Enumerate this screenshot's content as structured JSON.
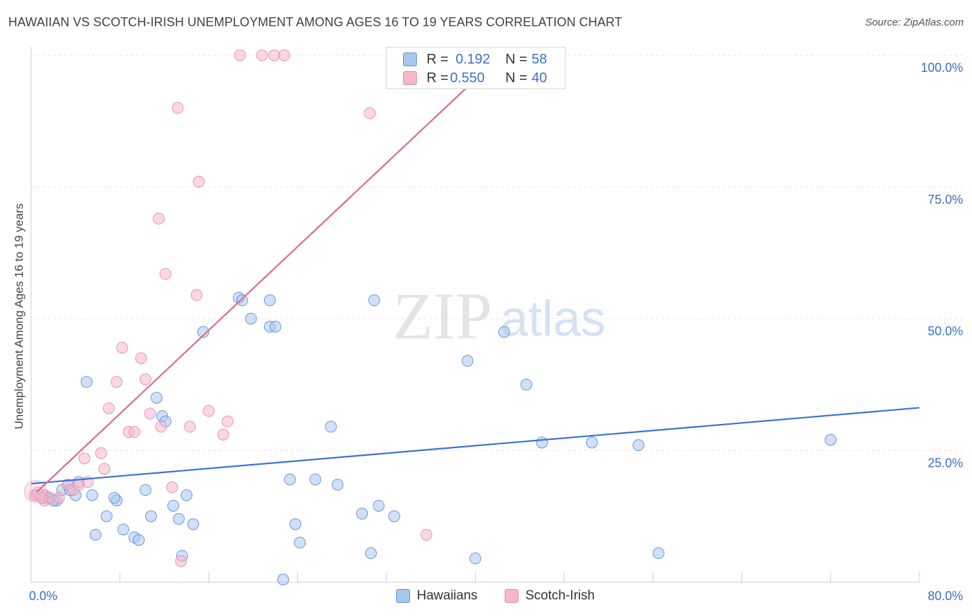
{
  "title": "HAWAIIAN VS SCOTCH-IRISH UNEMPLOYMENT AMONG AGES 16 TO 19 YEARS CORRELATION CHART",
  "source": "Source: ZipAtlas.com",
  "watermark": {
    "zip": "ZIP",
    "atlas": "atlas"
  },
  "legend": {
    "r_label": "R =",
    "n_label": "N =",
    "hawaiians": {
      "r": "0.192",
      "n": "58"
    },
    "scotch_irish": {
      "r": "0.550",
      "n": "40"
    }
  },
  "bottom_legend": {
    "hawaiians": "Hawaiians",
    "scotch_irish": "Scotch-Irish"
  },
  "colors": {
    "hawaiians_fill": "#a9c6ef",
    "hawaiians_stroke": "#5b8fd8",
    "hawaiians_line": "#3a72d4",
    "scotch_fill": "#f5b8cb",
    "scotch_stroke": "#e58aa8",
    "scotch_line": "#e0678e",
    "tick_label": "#3b6fc8",
    "grid": "#e6e6e6"
  },
  "chart_data": {
    "type": "scatter",
    "title": "HAWAIIAN VS SCOTCH-IRISH UNEMPLOYMENT AMONG AGES 16 TO 19 YEARS CORRELATION CHART",
    "xlabel": "",
    "ylabel": "Unemployment Among Ages 16 to 19 years",
    "xlim": [
      0,
      80
    ],
    "ylim": [
      0,
      100
    ],
    "x_tick_labels": [
      {
        "value": 0,
        "label": "0.0%"
      },
      {
        "value": 80,
        "label": "80.0%"
      }
    ],
    "y_tick_labels": [
      {
        "value": 25,
        "label": "25.0%"
      },
      {
        "value": 50,
        "label": "50.0%"
      },
      {
        "value": 75,
        "label": "75.0%"
      },
      {
        "value": 100,
        "label": "100.0%"
      }
    ],
    "x_minor_ticks": [
      8,
      16,
      24,
      32,
      40,
      48,
      56,
      64,
      72,
      80
    ],
    "series": [
      {
        "name": "Hawaiians",
        "r": 0.192,
        "n": 58,
        "trend": {
          "x": [
            0,
            80
          ],
          "y": [
            18.7,
            33.1
          ]
        },
        "points": [
          [
            0.5,
            16.5
          ],
          [
            1.0,
            16.0
          ],
          [
            1.5,
            16.0
          ],
          [
            2.3,
            15.5
          ],
          [
            2.8,
            17.5
          ],
          [
            3.3,
            18.5
          ],
          [
            4.0,
            16.5
          ],
          [
            5.5,
            16.5
          ],
          [
            5.0,
            38.0
          ],
          [
            5.8,
            9.0
          ],
          [
            6.8,
            12.5
          ],
          [
            7.7,
            15.5
          ],
          [
            8.3,
            10.0
          ],
          [
            9.3,
            8.5
          ],
          [
            9.7,
            8.0
          ],
          [
            10.3,
            17.5
          ],
          [
            10.8,
            12.5
          ],
          [
            11.3,
            35.0
          ],
          [
            11.8,
            31.5
          ],
          [
            12.1,
            30.5
          ],
          [
            12.8,
            14.5
          ],
          [
            13.3,
            12.0
          ],
          [
            13.6,
            5.0
          ],
          [
            14.0,
            16.5
          ],
          [
            14.6,
            11.0
          ],
          [
            15.5,
            47.5
          ],
          [
            18.7,
            54.0
          ],
          [
            19.0,
            53.5
          ],
          [
            19.8,
            50.0
          ],
          [
            21.5,
            53.5
          ],
          [
            21.5,
            48.5
          ],
          [
            22.0,
            48.5
          ],
          [
            22.7,
            0.5
          ],
          [
            23.3,
            19.5
          ],
          [
            23.8,
            11.0
          ],
          [
            24.2,
            7.5
          ],
          [
            25.6,
            19.5
          ],
          [
            27.0,
            29.5
          ],
          [
            27.6,
            18.5
          ],
          [
            29.8,
            13.0
          ],
          [
            30.6,
            5.5
          ],
          [
            30.9,
            53.5
          ],
          [
            31.3,
            14.5
          ],
          [
            32.7,
            12.5
          ],
          [
            39.3,
            42.0
          ],
          [
            40.0,
            4.5
          ],
          [
            42.6,
            47.5
          ],
          [
            44.6,
            37.5
          ],
          [
            46.0,
            26.5
          ],
          [
            50.5,
            26.5
          ],
          [
            54.7,
            26.0
          ],
          [
            56.5,
            5.5
          ],
          [
            72.0,
            27.0
          ],
          [
            2.0,
            15.5
          ],
          [
            3.5,
            17.5
          ],
          [
            1.2,
            16.5
          ],
          [
            4.3,
            19.0
          ],
          [
            7.5,
            16.0
          ]
        ]
      },
      {
        "name": "Scotch-Irish",
        "r": 0.55,
        "n": 40,
        "trend": {
          "x": [
            0.5,
            39.8
          ],
          "y": [
            17.1,
            95.0
          ]
        },
        "points": [
          [
            0.3,
            16.5
          ],
          [
            0.8,
            16.5
          ],
          [
            1.2,
            15.5
          ],
          [
            1.7,
            16.0
          ],
          [
            2.5,
            16.0
          ],
          [
            3.3,
            18.5
          ],
          [
            3.8,
            17.5
          ],
          [
            4.3,
            18.5
          ],
          [
            5.1,
            19.0
          ],
          [
            4.8,
            23.5
          ],
          [
            6.3,
            24.5
          ],
          [
            6.6,
            21.5
          ],
          [
            7.0,
            33.0
          ],
          [
            7.7,
            38.0
          ],
          [
            8.2,
            44.5
          ],
          [
            8.8,
            28.5
          ],
          [
            9.3,
            28.5
          ],
          [
            9.9,
            42.5
          ],
          [
            10.3,
            38.5
          ],
          [
            10.7,
            32.0
          ],
          [
            11.7,
            29.5
          ],
          [
            11.5,
            69.0
          ],
          [
            12.1,
            58.5
          ],
          [
            12.7,
            18.0
          ],
          [
            13.2,
            90.0
          ],
          [
            13.5,
            4.0
          ],
          [
            14.3,
            29.5
          ],
          [
            14.9,
            54.5
          ],
          [
            15.1,
            76.0
          ],
          [
            16.0,
            32.5
          ],
          [
            17.3,
            28.0
          ],
          [
            17.7,
            30.5
          ],
          [
            18.8,
            100.0
          ],
          [
            20.8,
            100.0
          ],
          [
            21.9,
            100.0
          ],
          [
            22.8,
            100.0
          ],
          [
            30.5,
            89.0
          ],
          [
            35.6,
            9.0
          ],
          [
            0.6,
            17.0
          ],
          [
            1.0,
            16.0
          ]
        ]
      }
    ]
  }
}
